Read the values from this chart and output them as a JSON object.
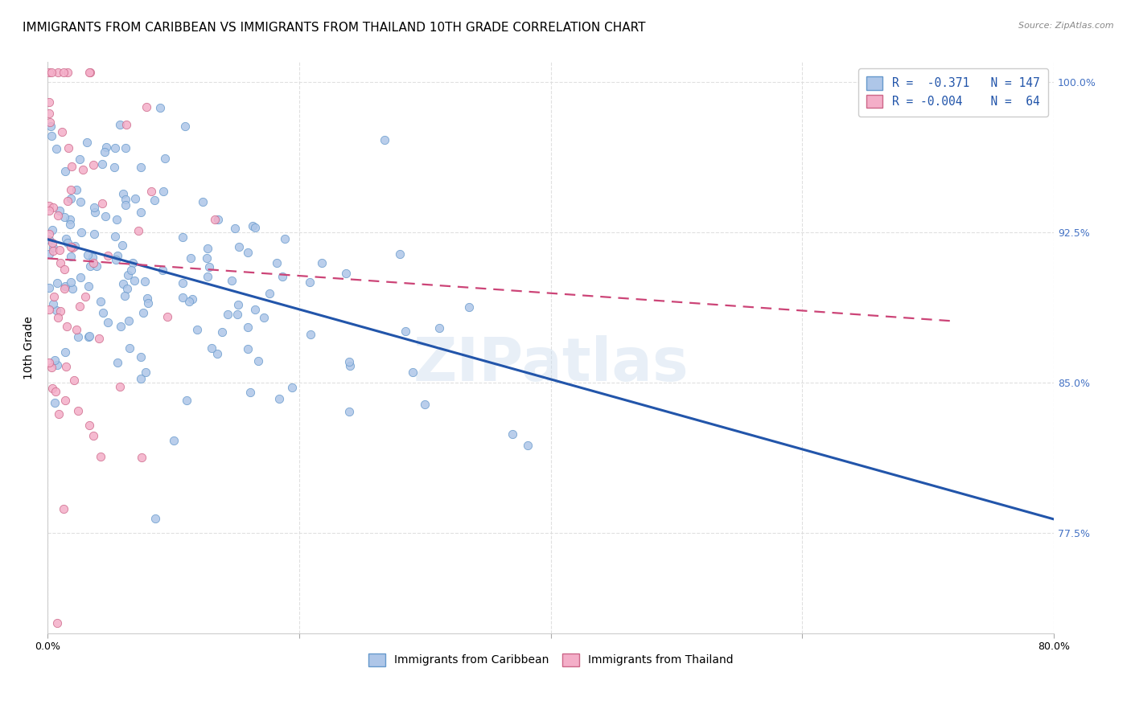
{
  "title": "IMMIGRANTS FROM CARIBBEAN VS IMMIGRANTS FROM THAILAND 10TH GRADE CORRELATION CHART",
  "source": "Source: ZipAtlas.com",
  "ylabel": "10th Grade",
  "watermark": "ZIPatlas",
  "xlim": [
    0.0,
    0.8
  ],
  "ylim": [
    0.725,
    1.01
  ],
  "xtick_vals": [
    0.0,
    0.2,
    0.4,
    0.6,
    0.8
  ],
  "xtick_labels": [
    "0.0%",
    "",
    "",
    "",
    "80.0%"
  ],
  "ytick_values_right": [
    1.0,
    0.925,
    0.85,
    0.775
  ],
  "ytick_labels_right": [
    "100.0%",
    "92.5%",
    "85.0%",
    "77.5%"
  ],
  "blue_R": -0.371,
  "blue_N": 147,
  "pink_R": -0.004,
  "pink_N": 64,
  "blue_color": "#aec6e8",
  "pink_color": "#f4aec8",
  "blue_edge_color": "#6699cc",
  "pink_edge_color": "#cc6688",
  "blue_line_color": "#2255aa",
  "pink_line_color": "#cc4477",
  "legend_blue_label": "Immigrants from Caribbean",
  "legend_pink_label": "Immigrants from Thailand",
  "title_fontsize": 11,
  "axis_label_fontsize": 10,
  "tick_fontsize": 9
}
